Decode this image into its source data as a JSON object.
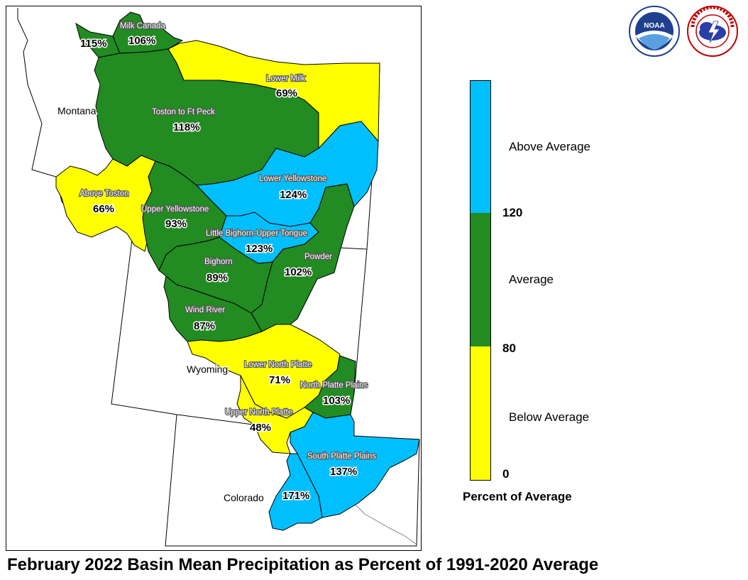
{
  "title": "February 2022 Basin Mean Precipitation as Percent of 1991-2020 Average",
  "colors": {
    "above": "#00bfff",
    "average": "#228b22",
    "below": "#ffff00",
    "border": "#000000"
  },
  "legend": {
    "caption": "Percent of Average",
    "categories": [
      {
        "label": "Above Average",
        "color": "#00bfff"
      },
      {
        "label": "Average",
        "color": "#228b22"
      },
      {
        "label": "Below Average",
        "color": "#ffff00"
      }
    ],
    "ticks": [
      "120",
      "80",
      "0"
    ]
  },
  "states": [
    "Montana",
    "Wyoming",
    "Colorado"
  ],
  "basins": [
    {
      "key": "milk-canada-west",
      "name": "",
      "percent": "115%",
      "category": "average"
    },
    {
      "key": "milk-canada",
      "name": "Milk Canada",
      "percent": "106%",
      "category": "average"
    },
    {
      "key": "lower-milk",
      "name": "Lower Milk",
      "percent": "69%",
      "category": "below"
    },
    {
      "key": "toston-ft-peck",
      "name": "Toston to Ft Peck",
      "percent": "118%",
      "category": "average"
    },
    {
      "key": "above-toston",
      "name": "Above Toston",
      "percent": "66%",
      "category": "below"
    },
    {
      "key": "lower-yellowstone",
      "name": "Lower Yellowstone",
      "percent": "124%",
      "category": "above"
    },
    {
      "key": "upper-yellowstone",
      "name": "Upper Yellowstone",
      "percent": "93%",
      "category": "average"
    },
    {
      "key": "little-bighorn-upper-tongue",
      "name": "Little Bighorn-Upper Tongue",
      "percent": "123%",
      "category": "above"
    },
    {
      "key": "bighorn",
      "name": "Bighorn",
      "percent": "89%",
      "category": "average"
    },
    {
      "key": "powder",
      "name": "Powder",
      "percent": "102%",
      "category": "average"
    },
    {
      "key": "wind-river",
      "name": "Wind River",
      "percent": "87%",
      "category": "average"
    },
    {
      "key": "lower-north-platte",
      "name": "Lower North Platte",
      "percent": "71%",
      "category": "below"
    },
    {
      "key": "north-platte-plains",
      "name": "North Platte Plains",
      "percent": "103%",
      "category": "average"
    },
    {
      "key": "upper-north-platte",
      "name": "Upper North Platte",
      "percent": "48%",
      "category": "below"
    },
    {
      "key": "south-platte-plains",
      "name": "South Platte Plains",
      "percent": "137%",
      "category": "above"
    },
    {
      "key": "south-platte-mountains",
      "name": "",
      "percent": "171%",
      "category": "above"
    }
  ],
  "logos": [
    {
      "name": "noaa-logo",
      "text": "NOAA"
    },
    {
      "name": "nws-logo",
      "text": "NATIONAL WEATHER SERVICE"
    }
  ]
}
